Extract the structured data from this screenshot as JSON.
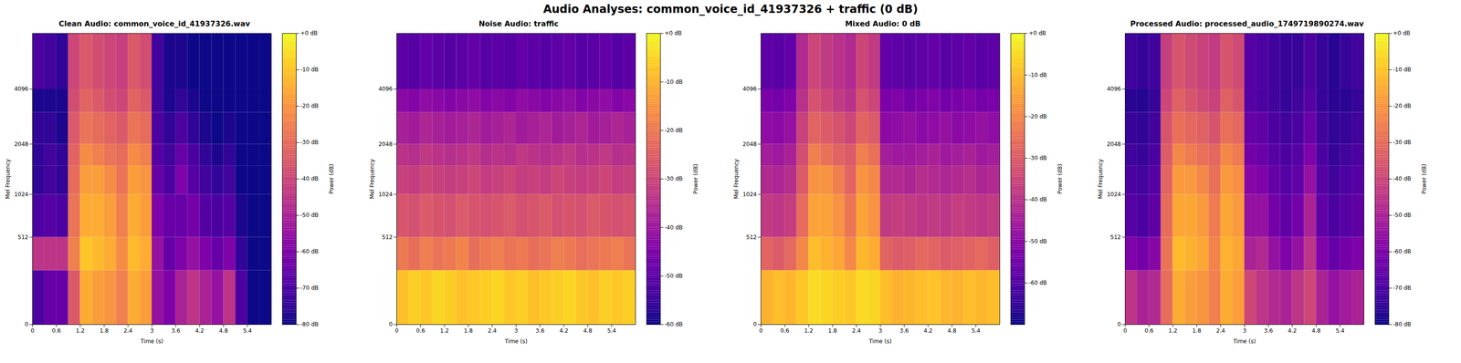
{
  "title": "Audio Analyses: common_voice_id_41937326 + traffic (0 dB)",
  "chart_data": [
    {
      "type": "heatmap",
      "title": "Clean Audio: common_voice_id_41937326.wav",
      "x_label": "Time (s)",
      "y_label": "Mel Frequency",
      "color": "plasma",
      "xlim": [
        0,
        6
      ],
      "xticks": [
        0,
        0.6,
        1.2,
        1.8,
        2.4,
        3,
        3.6,
        4.2,
        4.8,
        5.4
      ],
      "ylim": [
        0,
        8000
      ],
      "yticks": [
        0,
        512,
        1024,
        2048,
        4096
      ],
      "x_edges": [
        0,
        0.3,
        0.6,
        0.9,
        1.2,
        1.5,
        1.8,
        2.1,
        2.4,
        2.7,
        3,
        3.3,
        3.6,
        3.9,
        4.2,
        4.5,
        4.8,
        5.1,
        5.4,
        5.7,
        6
      ],
      "y_edges": [
        0,
        256,
        512,
        1024,
        1536,
        2048,
        3072,
        4096,
        8000
      ],
      "cells": [
        [
          -70,
          -65,
          -65,
          -35,
          -15,
          -18,
          -20,
          -25,
          -15,
          -18,
          -55,
          -60,
          -50,
          -45,
          -50,
          -55,
          -45,
          -70,
          -80,
          -80
        ],
        [
          -45,
          -45,
          -45,
          -25,
          -10,
          -12,
          -15,
          -22,
          -12,
          -15,
          -55,
          -65,
          -60,
          -55,
          -60,
          -65,
          -60,
          -75,
          -80,
          -80
        ],
        [
          -70,
          -68,
          -70,
          -28,
          -15,
          -15,
          -18,
          -25,
          -15,
          -18,
          -60,
          -65,
          -65,
          -62,
          -68,
          -70,
          -68,
          -78,
          -80,
          -80
        ],
        [
          -75,
          -72,
          -75,
          -30,
          -18,
          -18,
          -22,
          -28,
          -18,
          -20,
          -65,
          -70,
          -60,
          -68,
          -72,
          -75,
          -72,
          -80,
          -80,
          -80
        ],
        [
          -75,
          -72,
          -75,
          -32,
          -22,
          -25,
          -28,
          -30,
          -22,
          -25,
          -68,
          -72,
          -65,
          -70,
          -75,
          -78,
          -75,
          -80,
          -80,
          -80
        ],
        [
          -75,
          -75,
          -78,
          -35,
          -28,
          -30,
          -32,
          -35,
          -28,
          -30,
          -70,
          -75,
          -70,
          -75,
          -78,
          -80,
          -78,
          -80,
          -80,
          -80
        ],
        [
          -78,
          -78,
          -78,
          -38,
          -32,
          -35,
          -38,
          -40,
          -32,
          -35,
          -72,
          -78,
          -75,
          -78,
          -80,
          -80,
          -80,
          -80,
          -80,
          -80
        ],
        [
          -70,
          -72,
          -75,
          -40,
          -35,
          -38,
          -40,
          -42,
          -35,
          -38,
          -72,
          -78,
          -78,
          -80,
          -80,
          -80,
          -80,
          -80,
          -80,
          -80
        ]
      ],
      "colorbar": {
        "label": "Power (dB)",
        "range": [
          -80,
          0
        ],
        "ticks": [
          {
            "value": 0,
            "label": "+0 dB"
          },
          {
            "value": -10,
            "label": "-10 dB"
          },
          {
            "value": -20,
            "label": "-20 dB"
          },
          {
            "value": -30,
            "label": "-30 dB"
          },
          {
            "value": -40,
            "label": "-40 dB"
          },
          {
            "value": -50,
            "label": "-50 dB"
          },
          {
            "value": -60,
            "label": "-60 dB"
          },
          {
            "value": -70,
            "label": "-70 dB"
          },
          {
            "value": -80,
            "label": "-80 dB"
          }
        ]
      }
    },
    {
      "type": "heatmap",
      "title": "Noise Audio: traffic",
      "x_label": "Time (s)",
      "y_label": "Mel Frequency",
      "color": "plasma",
      "xlim": [
        0,
        6
      ],
      "xticks": [
        0,
        0.6,
        1.2,
        1.8,
        2.4,
        3,
        3.6,
        4.2,
        4.8,
        5.4
      ],
      "ylim": [
        0,
        8000
      ],
      "yticks": [
        0,
        512,
        1024,
        2048,
        4096
      ],
      "x_edges": [
        0,
        0.3,
        0.6,
        0.9,
        1.2,
        1.5,
        1.8,
        2.1,
        2.4,
        2.7,
        3,
        3.3,
        3.6,
        3.9,
        4.2,
        4.5,
        4.8,
        5.1,
        5.4,
        5.7,
        6
      ],
      "y_edges": [
        0,
        256,
        512,
        1024,
        1536,
        2048,
        3072,
        4096,
        8000
      ],
      "cells": [
        [
          -8,
          -6,
          -7,
          -5,
          -6,
          -8,
          -7,
          -6,
          -5,
          -7,
          -6,
          -8,
          -7,
          -6,
          -5,
          -7,
          -8,
          -6,
          -7,
          -6
        ],
        [
          -20,
          -22,
          -19,
          -21,
          -20,
          -18,
          -22,
          -20,
          -19,
          -21,
          -20,
          -22,
          -21,
          -19,
          -20,
          -22,
          -21,
          -20,
          -19,
          -21
        ],
        [
          -27,
          -28,
          -26,
          -27,
          -28,
          -26,
          -27,
          -28,
          -27,
          -26,
          -28,
          -27,
          -26,
          -28,
          -27,
          -28,
          -26,
          -27,
          -28,
          -27
        ],
        [
          -31,
          -32,
          -30,
          -31,
          -32,
          -31,
          -30,
          -32,
          -31,
          -30,
          -32,
          -31,
          -32,
          -30,
          -31,
          -32,
          -31,
          -30,
          -32,
          -31
        ],
        [
          -34,
          -35,
          -33,
          -34,
          -35,
          -34,
          -33,
          -35,
          -34,
          -35,
          -33,
          -34,
          -35,
          -34,
          -33,
          -35,
          -34,
          -33,
          -35,
          -34
        ],
        [
          -38,
          -39,
          -37,
          -38,
          -39,
          -38,
          -37,
          -39,
          -38,
          -37,
          -39,
          -38,
          -37,
          -39,
          -38,
          -37,
          -39,
          -38,
          -37,
          -38
        ],
        [
          -43,
          -44,
          -42,
          -43,
          -44,
          -43,
          -42,
          -44,
          -43,
          -44,
          -42,
          -43,
          -44,
          -43,
          -42,
          -44,
          -43,
          -42,
          -44,
          -43
        ],
        [
          -50,
          -51,
          -49,
          -50,
          -51,
          -50,
          -49,
          -51,
          -50,
          -51,
          -49,
          -50,
          -51,
          -50,
          -49,
          -51,
          -50,
          -49,
          -51,
          -50
        ]
      ],
      "colorbar": {
        "label": "Power (dB)",
        "range": [
          -60,
          0
        ],
        "ticks": [
          {
            "value": 0,
            "label": "+0 dB"
          },
          {
            "value": -10,
            "label": "-10 dB"
          },
          {
            "value": -20,
            "label": "-20 dB"
          },
          {
            "value": -30,
            "label": "-30 dB"
          },
          {
            "value": -40,
            "label": "-40 dB"
          },
          {
            "value": -50,
            "label": "-50 dB"
          },
          {
            "value": -60,
            "label": "-60 dB"
          }
        ]
      }
    },
    {
      "type": "heatmap",
      "title": "Mixed Audio: 0 dB",
      "x_label": "Time (s)",
      "y_label": "Mel Frequency",
      "color": "plasma",
      "xlim": [
        0,
        6
      ],
      "xticks": [
        0,
        0.6,
        1.2,
        1.8,
        2.4,
        3,
        3.6,
        4.2,
        4.8,
        5.4
      ],
      "ylim": [
        0,
        8000
      ],
      "yticks": [
        0,
        512,
        1024,
        2048,
        4096
      ],
      "x_edges": [
        0,
        0.3,
        0.6,
        0.9,
        1.2,
        1.5,
        1.8,
        2.1,
        2.4,
        2.7,
        3,
        3.3,
        3.6,
        3.9,
        4.2,
        4.5,
        4.8,
        5.1,
        5.4,
        5.7,
        6
      ],
      "y_edges": [
        0,
        256,
        512,
        1024,
        1536,
        2048,
        3072,
        4096,
        8000
      ],
      "cells": [
        [
          -12,
          -10,
          -11,
          -8,
          -5,
          -6,
          -7,
          -8,
          -5,
          -6,
          -10,
          -12,
          -11,
          -10,
          -9,
          -11,
          -12,
          -10,
          -11,
          -10
        ],
        [
          -28,
          -30,
          -27,
          -20,
          -10,
          -12,
          -14,
          -20,
          -11,
          -13,
          -28,
          -30,
          -29,
          -27,
          -28,
          -30,
          -29,
          -28,
          -27,
          -29
        ],
        [
          -38,
          -39,
          -37,
          -26,
          -15,
          -15,
          -18,
          -24,
          -15,
          -18,
          -38,
          -37,
          -38,
          -39,
          -38,
          -39,
          -37,
          -38,
          -39,
          -38
        ],
        [
          -42,
          -43,
          -41,
          -30,
          -18,
          -18,
          -22,
          -28,
          -18,
          -20,
          -42,
          -42,
          -43,
          -41,
          -42,
          -43,
          -42,
          -41,
          -43,
          -42
        ],
        [
          -45,
          -46,
          -44,
          -33,
          -22,
          -25,
          -28,
          -30,
          -22,
          -25,
          -45,
          -46,
          -46,
          -45,
          -44,
          -46,
          -45,
          -44,
          -46,
          -45
        ],
        [
          -49,
          -50,
          -48,
          -36,
          -28,
          -30,
          -32,
          -35,
          -28,
          -30,
          -50,
          -49,
          -48,
          -50,
          -49,
          -48,
          -50,
          -49,
          -48,
          -49
        ],
        [
          -53,
          -54,
          -52,
          -40,
          -32,
          -35,
          -38,
          -40,
          -32,
          -35,
          -53,
          -52,
          -54,
          -53,
          -52,
          -54,
          -53,
          -52,
          -54,
          -53
        ],
        [
          -58,
          -59,
          -57,
          -42,
          -35,
          -38,
          -40,
          -42,
          -35,
          -38,
          -57,
          -58,
          -59,
          -58,
          -57,
          -59,
          -58,
          -57,
          -59,
          -58
        ]
      ],
      "colorbar": {
        "label": "Power (dB)",
        "range": [
          -70,
          0
        ],
        "ticks": [
          {
            "value": 0,
            "label": "+0 dB"
          },
          {
            "value": -10,
            "label": "-10 dB"
          },
          {
            "value": -20,
            "label": "-20 dB"
          },
          {
            "value": -30,
            "label": "-30 dB"
          },
          {
            "value": -40,
            "label": "-40 dB"
          },
          {
            "value": -50,
            "label": "-50 dB"
          },
          {
            "value": -60,
            "label": "-60 dB"
          }
        ]
      }
    },
    {
      "type": "heatmap",
      "title": "Processed Audio: processed_audio_1749719890274.wav",
      "x_label": "Time (s)",
      "y_label": "Mel Frequency",
      "color": "plasma",
      "xlim": [
        0,
        6
      ],
      "xticks": [
        0,
        0.6,
        1.2,
        1.8,
        2.4,
        3,
        3.6,
        4.2,
        4.8,
        5.4
      ],
      "ylim": [
        0,
        8000
      ],
      "yticks": [
        0,
        512,
        1024,
        2048,
        4096
      ],
      "x_edges": [
        0,
        0.3,
        0.6,
        0.9,
        1.2,
        1.5,
        1.8,
        2.1,
        2.4,
        2.7,
        3,
        3.3,
        3.6,
        3.9,
        4.2,
        4.5,
        4.8,
        5.1,
        5.4,
        5.7,
        6
      ],
      "y_edges": [
        0,
        256,
        512,
        1024,
        1536,
        2048,
        3072,
        4096,
        8000
      ],
      "cells": [
        [
          -45,
          -50,
          -48,
          -30,
          -15,
          -18,
          -20,
          -25,
          -15,
          -18,
          -40,
          -45,
          -48,
          -50,
          -45,
          -40,
          -50,
          -55,
          -52,
          -50
        ],
        [
          -60,
          -62,
          -58,
          -28,
          -12,
          -14,
          -16,
          -24,
          -14,
          -16,
          -50,
          -48,
          -55,
          -60,
          -55,
          -45,
          -60,
          -65,
          -62,
          -60
        ],
        [
          -68,
          -70,
          -66,
          -30,
          -16,
          -16,
          -19,
          -26,
          -16,
          -19,
          -55,
          -55,
          -62,
          -66,
          -62,
          -50,
          -66,
          -70,
          -68,
          -66
        ],
        [
          -70,
          -72,
          -68,
          -32,
          -19,
          -19,
          -23,
          -29,
          -19,
          -21,
          -58,
          -60,
          -65,
          -68,
          -66,
          -55,
          -68,
          -72,
          -70,
          -68
        ],
        [
          -72,
          -74,
          -70,
          -34,
          -23,
          -26,
          -29,
          -31,
          -23,
          -26,
          -62,
          -64,
          -68,
          -70,
          -68,
          -60,
          -70,
          -74,
          -72,
          -70
        ],
        [
          -74,
          -75,
          -72,
          -36,
          -29,
          -31,
          -33,
          -36,
          -29,
          -31,
          -65,
          -66,
          -70,
          -72,
          -70,
          -64,
          -72,
          -75,
          -74,
          -72
        ],
        [
          -76,
          -77,
          -74,
          -40,
          -33,
          -36,
          -39,
          -41,
          -33,
          -36,
          -68,
          -70,
          -72,
          -74,
          -72,
          -68,
          -74,
          -76,
          -76,
          -74
        ],
        [
          -72,
          -74,
          -72,
          -42,
          -36,
          -39,
          -41,
          -43,
          -36,
          -39,
          -68,
          -70,
          -72,
          -74,
          -74,
          -70,
          -74,
          -76,
          -74,
          -72
        ]
      ],
      "colorbar": {
        "label": "Power (dB)",
        "range": [
          -80,
          0
        ],
        "ticks": [
          {
            "value": 0,
            "label": "+0 dB"
          },
          {
            "value": -10,
            "label": "-10 dB"
          },
          {
            "value": -20,
            "label": "-20 dB"
          },
          {
            "value": -30,
            "label": "-30 dB"
          },
          {
            "value": -40,
            "label": "-40 dB"
          },
          {
            "value": -50,
            "label": "-50 dB"
          },
          {
            "value": -60,
            "label": "-60 dB"
          },
          {
            "value": -70,
            "label": "-70 dB"
          },
          {
            "value": -80,
            "label": "-80 dB"
          }
        ]
      }
    }
  ]
}
